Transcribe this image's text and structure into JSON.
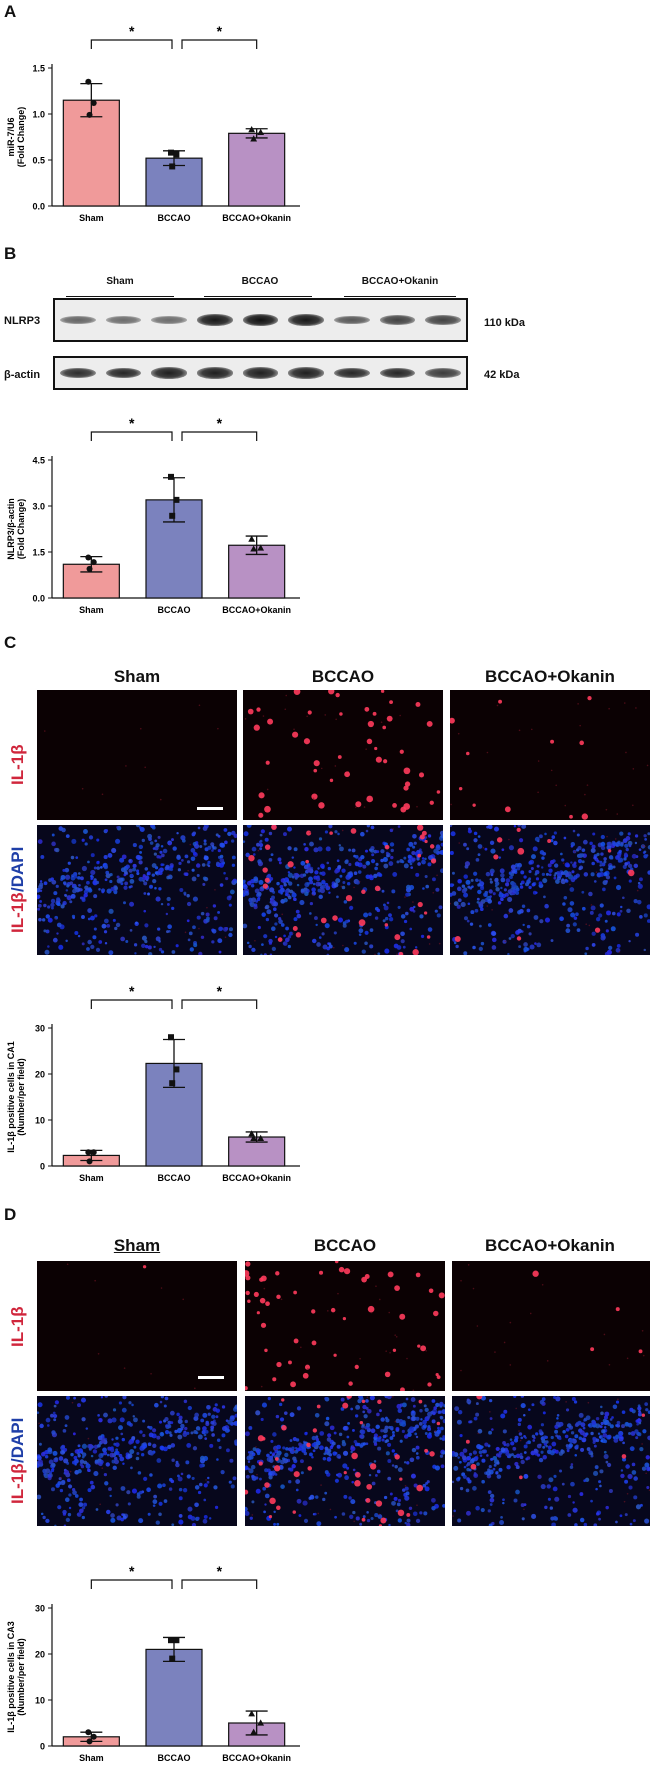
{
  "panels": {
    "a": {
      "letter": "A"
    },
    "b": {
      "letter": "B"
    },
    "c": {
      "letter": "C"
    },
    "d": {
      "letter": "D"
    }
  },
  "groups": [
    "Sham",
    "BCCAO",
    "BCCAO+Okanin"
  ],
  "colors": {
    "sham": "#f09a9a",
    "bccao": "#7b82be",
    "okanin": "#b891c4"
  },
  "blot": {
    "group_labels": [
      "Sham",
      "BCCAO",
      "BCCAO+Okanin"
    ],
    "rows": [
      {
        "label": "NLRP3",
        "kda": "110 kDa",
        "intensity": [
          0.35,
          0.3,
          0.3,
          0.9,
          0.95,
          0.9,
          0.45,
          0.6,
          0.6
        ]
      },
      {
        "label": "β-actin",
        "kda": "42 kDa",
        "intensity": [
          0.75,
          0.8,
          0.85,
          0.85,
          0.85,
          0.85,
          0.8,
          0.8,
          0.65
        ]
      }
    ]
  },
  "if_c": {
    "titles": [
      "Sham",
      "BCCAO",
      "BCCAO+Okanin"
    ],
    "row1_label": "IL-1β",
    "row2_label_red": "IL-1β",
    "row2_label_blue": "/DAPI"
  },
  "if_d": {
    "titles": [
      "Sham",
      "BCCAO",
      "BCCAO+Okanin"
    ],
    "row1_label": "IL-1β",
    "row2_label_red": "IL-1β",
    "row2_label_blue": "/DAPI"
  },
  "chart_data": [
    {
      "type": "bar",
      "panel": "A",
      "categories": [
        "Sham",
        "BCCAO",
        "BCCAO+Okanin"
      ],
      "values": [
        1.15,
        0.52,
        0.79
      ],
      "errors": [
        0.18,
        0.08,
        0.05
      ],
      "points": [
        [
          1.35,
          1.12,
          0.99
        ],
        [
          0.58,
          0.56,
          0.43
        ],
        [
          0.83,
          0.8,
          0.73
        ]
      ],
      "ylabel": "miR-7/U6\n(Fold Change)",
      "ylim": [
        0,
        1.5
      ],
      "yticks": [
        "0.0",
        "0.5",
        "1.0",
        "1.5"
      ],
      "significance": [
        {
          "from": 0,
          "to": 1,
          "label": "*"
        },
        {
          "from": 1,
          "to": 2,
          "label": "*"
        }
      ]
    },
    {
      "type": "bar",
      "panel": "B",
      "categories": [
        "Sham",
        "BCCAO",
        "BCCAO+Okanin"
      ],
      "values": [
        1.1,
        3.2,
        1.72
      ],
      "errors": [
        0.25,
        0.72,
        0.3
      ],
      "points": [
        [
          1.32,
          1.17,
          0.95
        ],
        [
          3.95,
          3.2,
          2.68
        ],
        [
          1.92,
          1.63,
          1.6
        ]
      ],
      "ylabel": "NLRP3/β-actin\n(Fold Change)",
      "ylim": [
        0,
        4.5
      ],
      "yticks": [
        "0.0",
        "1.5",
        "3.0",
        "4.5"
      ],
      "significance": [
        {
          "from": 0,
          "to": 1,
          "label": "*"
        },
        {
          "from": 1,
          "to": 2,
          "label": "*"
        }
      ]
    },
    {
      "type": "bar",
      "panel": "C",
      "categories": [
        "Sham",
        "BCCAO",
        "BCCAO+Okanin"
      ],
      "values": [
        2.3,
        22.3,
        6.3
      ],
      "errors": [
        1.1,
        5.2,
        1.1
      ],
      "points": [
        [
          3.0,
          3.0,
          1.0
        ],
        [
          28.0,
          21.0,
          18.0
        ],
        [
          7.0,
          6.0,
          6.0
        ]
      ],
      "ylabel": "IL-1β positive cells in CA1\n(Number/per field)",
      "ylim": [
        0,
        30
      ],
      "yticks": [
        "0",
        "10",
        "20",
        "30"
      ],
      "significance": [
        {
          "from": 0,
          "to": 1,
          "label": "*"
        },
        {
          "from": 1,
          "to": 2,
          "label": "*"
        }
      ]
    },
    {
      "type": "bar",
      "panel": "D",
      "categories": [
        "Sham",
        "BCCAO",
        "BCCAO+Okanin"
      ],
      "values": [
        2.0,
        21.0,
        5.0
      ],
      "errors": [
        1.0,
        2.6,
        2.6
      ],
      "points": [
        [
          3.0,
          2.0,
          1.0
        ],
        [
          23.0,
          23.0,
          19.0
        ],
        [
          7.0,
          5.0,
          3.0
        ]
      ],
      "ylabel": "IL-1β positive cells in CA3\n(Number/per field)",
      "ylim": [
        0,
        30
      ],
      "yticks": [
        "0",
        "10",
        "20",
        "30"
      ],
      "significance": [
        {
          "from": 0,
          "to": 1,
          "label": "*"
        },
        {
          "from": 1,
          "to": 2,
          "label": "*"
        }
      ]
    }
  ]
}
